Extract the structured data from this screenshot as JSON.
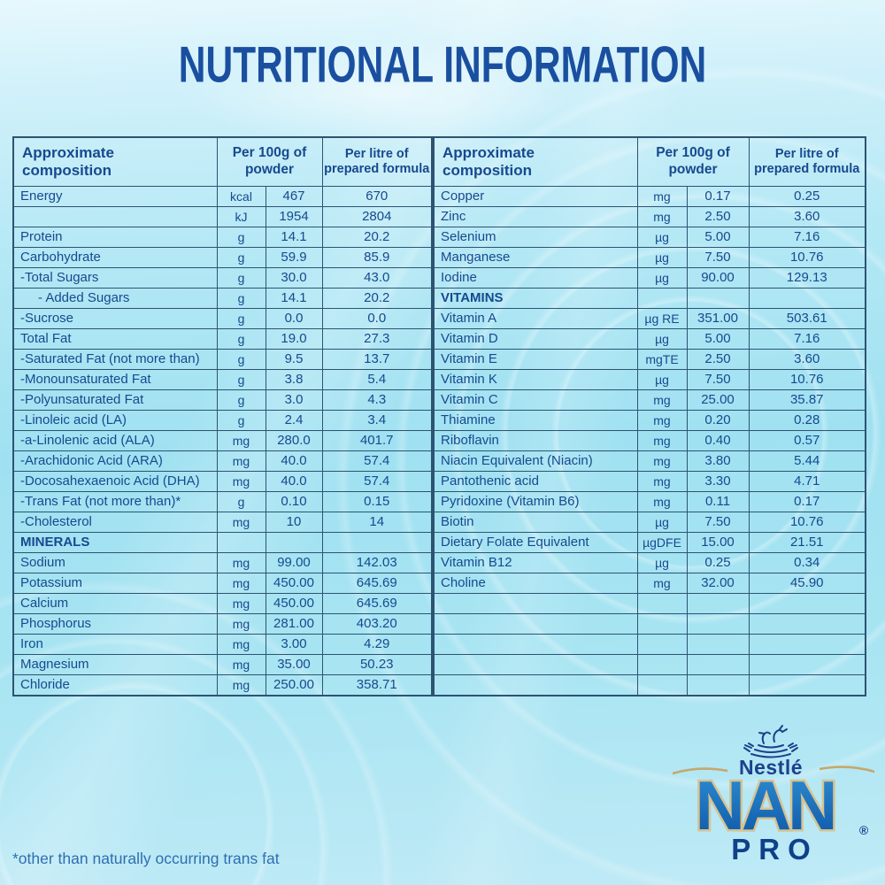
{
  "title": "NUTRITIONAL INFORMATION",
  "footnote": "*other than naturally occurring trans fat",
  "colors": {
    "title_blue": "#1a4fa0",
    "table_text_blue": "#17498f",
    "table_border_blue": "#2d5372",
    "background_cyan": "#a0e1f1",
    "logo_navy": "#1c418c",
    "nan_blue_top": "#2f8fd4",
    "nan_blue_bottom": "#0d55a5",
    "nan_outline_gold": "#d6c392",
    "swoosh_gold": "#c3a96f"
  },
  "logo": {
    "brand": "Nestlé",
    "product": "NAN",
    "registered": "®",
    "variant": "PRO"
  },
  "tables": {
    "left": {
      "headers": [
        "Approximate\ncomposition",
        "Per 100g of\npowder",
        "Per litre of\nprepared formula"
      ],
      "rows": [
        {
          "label": "Energy",
          "unit": "kcal",
          "p100": "467",
          "plitre": "670"
        },
        {
          "label": "",
          "unit": "kJ",
          "p100": "1954",
          "plitre": "2804"
        },
        {
          "label": "Protein",
          "unit": "g",
          "p100": "14.1",
          "plitre": "20.2"
        },
        {
          "label": "Carbohydrate",
          "unit": "g",
          "p100": "59.9",
          "plitre": "85.9"
        },
        {
          "label": "-Total Sugars",
          "unit": "g",
          "p100": "30.0",
          "plitre": "43.0"
        },
        {
          "label": "- Added Sugars",
          "unit": "g",
          "p100": "14.1",
          "plitre": "20.2",
          "ind": true
        },
        {
          "label": "-Sucrose",
          "unit": "g",
          "p100": "0.0",
          "plitre": "0.0"
        },
        {
          "label": "Total Fat",
          "unit": "g",
          "p100": "19.0",
          "plitre": "27.3"
        },
        {
          "label": "-Saturated Fat (not more than)",
          "unit": "g",
          "p100": "9.5",
          "plitre": "13.7"
        },
        {
          "label": "-Monounsaturated Fat",
          "unit": "g",
          "p100": "3.8",
          "plitre": "5.4"
        },
        {
          "label": "-Polyunsaturated Fat",
          "unit": "g",
          "p100": "3.0",
          "plitre": "4.3"
        },
        {
          "label": "-Linoleic acid (LA)",
          "unit": "g",
          "p100": "2.4",
          "plitre": "3.4"
        },
        {
          "label": "-a-Linolenic acid (ALA)",
          "unit": "mg",
          "p100": "280.0",
          "plitre": "401.7"
        },
        {
          "label": "-Arachidonic Acid (ARA)",
          "unit": "mg",
          "p100": "40.0",
          "plitre": "57.4"
        },
        {
          "label": "-Docosahexaenoic Acid (DHA)",
          "unit": "mg",
          "p100": "40.0",
          "plitre": "57.4"
        },
        {
          "label": "-Trans Fat (not more than)*",
          "unit": "g",
          "p100": "0.10",
          "plitre": "0.15"
        },
        {
          "label": "-Cholesterol",
          "unit": "mg",
          "p100": "10",
          "plitre": "14"
        },
        {
          "label": "MINERALS",
          "sec": true
        },
        {
          "label": "Sodium",
          "unit": "mg",
          "p100": "99.00",
          "plitre": "142.03"
        },
        {
          "label": "Potassium",
          "unit": "mg",
          "p100": "450.00",
          "plitre": "645.69"
        },
        {
          "label": "Calcium",
          "unit": "mg",
          "p100": "450.00",
          "plitre": "645.69"
        },
        {
          "label": "Phosphorus",
          "unit": "mg",
          "p100": "281.00",
          "plitre": "403.20"
        },
        {
          "label": "Iron",
          "unit": "mg",
          "p100": "3.00",
          "plitre": "4.29"
        },
        {
          "label": "Magnesium",
          "unit": "mg",
          "p100": "35.00",
          "plitre": "50.23"
        },
        {
          "label": "Chloride",
          "unit": "mg",
          "p100": "250.00",
          "plitre": "358.71"
        }
      ]
    },
    "right": {
      "headers": [
        "Approximate\ncomposition",
        "Per 100g of\npowder",
        "Per litre of\nprepared formula"
      ],
      "rows": [
        {
          "label": "Copper",
          "unit": "mg",
          "p100": "0.17",
          "plitre": "0.25"
        },
        {
          "label": "Zinc",
          "unit": "mg",
          "p100": "2.50",
          "plitre": "3.60"
        },
        {
          "label": "Selenium",
          "unit": "µg",
          "p100": "5.00",
          "plitre": "7.16"
        },
        {
          "label": "Manganese",
          "unit": "µg",
          "p100": "7.50",
          "plitre": "10.76"
        },
        {
          "label": "Iodine",
          "unit": "µg",
          "p100": "90.00",
          "plitre": "129.13"
        },
        {
          "label": "VITAMINS",
          "sec": true
        },
        {
          "label": "Vitamin A",
          "unit": "µg RE",
          "p100": "351.00",
          "plitre": "503.61"
        },
        {
          "label": "Vitamin D",
          "unit": "µg",
          "p100": "5.00",
          "plitre": "7.16"
        },
        {
          "label": "Vitamin E",
          "unit": "mgTE",
          "p100": "2.50",
          "plitre": "3.60"
        },
        {
          "label": "Vitamin K",
          "unit": "µg",
          "p100": "7.50",
          "plitre": "10.76"
        },
        {
          "label": "Vitamin C",
          "unit": "mg",
          "p100": "25.00",
          "plitre": "35.87"
        },
        {
          "label": "Thiamine",
          "unit": "mg",
          "p100": "0.20",
          "plitre": "0.28"
        },
        {
          "label": "Riboflavin",
          "unit": "mg",
          "p100": "0.40",
          "plitre": "0.57"
        },
        {
          "label": "Niacin Equivalent (Niacin)",
          "unit": "mg",
          "p100": "3.80",
          "plitre": "5.44"
        },
        {
          "label": "Pantothenic acid",
          "unit": "mg",
          "p100": "3.30",
          "plitre": "4.71"
        },
        {
          "label": "Pyridoxine (Vitamin B6)",
          "unit": "mg",
          "p100": "0.11",
          "plitre": "0.17"
        },
        {
          "label": "Biotin",
          "unit": "µg",
          "p100": "7.50",
          "plitre": "10.76"
        },
        {
          "label": "Dietary Folate Equivalent",
          "unit": "µgDFE",
          "p100": "15.00",
          "plitre": "21.51"
        },
        {
          "label": "Vitamin B12",
          "unit": "µg",
          "p100": "0.25",
          "plitre": "0.34"
        },
        {
          "label": "Choline",
          "unit": "mg",
          "p100": "32.00",
          "plitre": "45.90"
        },
        {
          "empty": true
        },
        {
          "empty": true
        },
        {
          "empty": true
        },
        {
          "empty": true
        },
        {
          "empty": true
        }
      ]
    }
  }
}
